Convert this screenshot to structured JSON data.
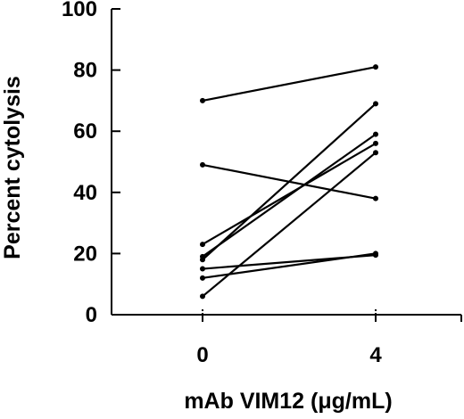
{
  "chart_data": {
    "type": "line",
    "title": "",
    "xlabel": "mAb VIM12 (μg/mL)",
    "ylabel": "Percent cytolysis",
    "categories": [
      "0",
      "4"
    ],
    "x": [
      0,
      4
    ],
    "xlim": [
      0,
      5
    ],
    "ylim": [
      0,
      100
    ],
    "yticks": [
      0,
      20,
      40,
      60,
      80,
      100
    ],
    "grid": false,
    "legend": "none",
    "series": [
      {
        "values": [
          70,
          81
        ]
      },
      {
        "values": [
          49,
          38
        ]
      },
      {
        "values": [
          23,
          56
        ]
      },
      {
        "values": [
          19,
          59
        ]
      },
      {
        "values": [
          18,
          69
        ]
      },
      {
        "values": [
          15,
          19.5
        ]
      },
      {
        "values": [
          12,
          20
        ]
      },
      {
        "values": [
          6,
          53
        ]
      }
    ]
  },
  "colors": {
    "line": "#000000",
    "axis": "#000000",
    "background": "#ffffff"
  }
}
